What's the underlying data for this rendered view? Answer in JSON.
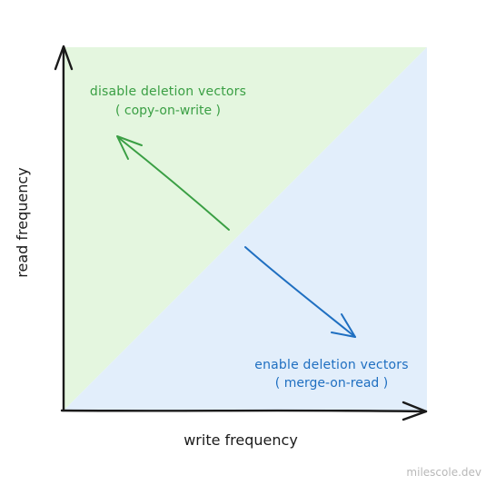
{
  "colors": {
    "green_region": "#e4f6df",
    "blue_region": "#e2eefb",
    "green_accent": "#3a9f44",
    "blue_accent": "#1f6fc1",
    "axis": "#1a1a1a",
    "watermark": "#b8b8b8"
  },
  "regions": {
    "upper_left": {
      "title": "disable deletion vectors",
      "subtitle": "( copy-on-write )"
    },
    "lower_right": {
      "title": "enable deletion vectors",
      "subtitle": "( merge-on-read )"
    }
  },
  "axes": {
    "x_label": "write frequency",
    "y_label": "read frequency"
  },
  "watermark": "milescole.dev"
}
